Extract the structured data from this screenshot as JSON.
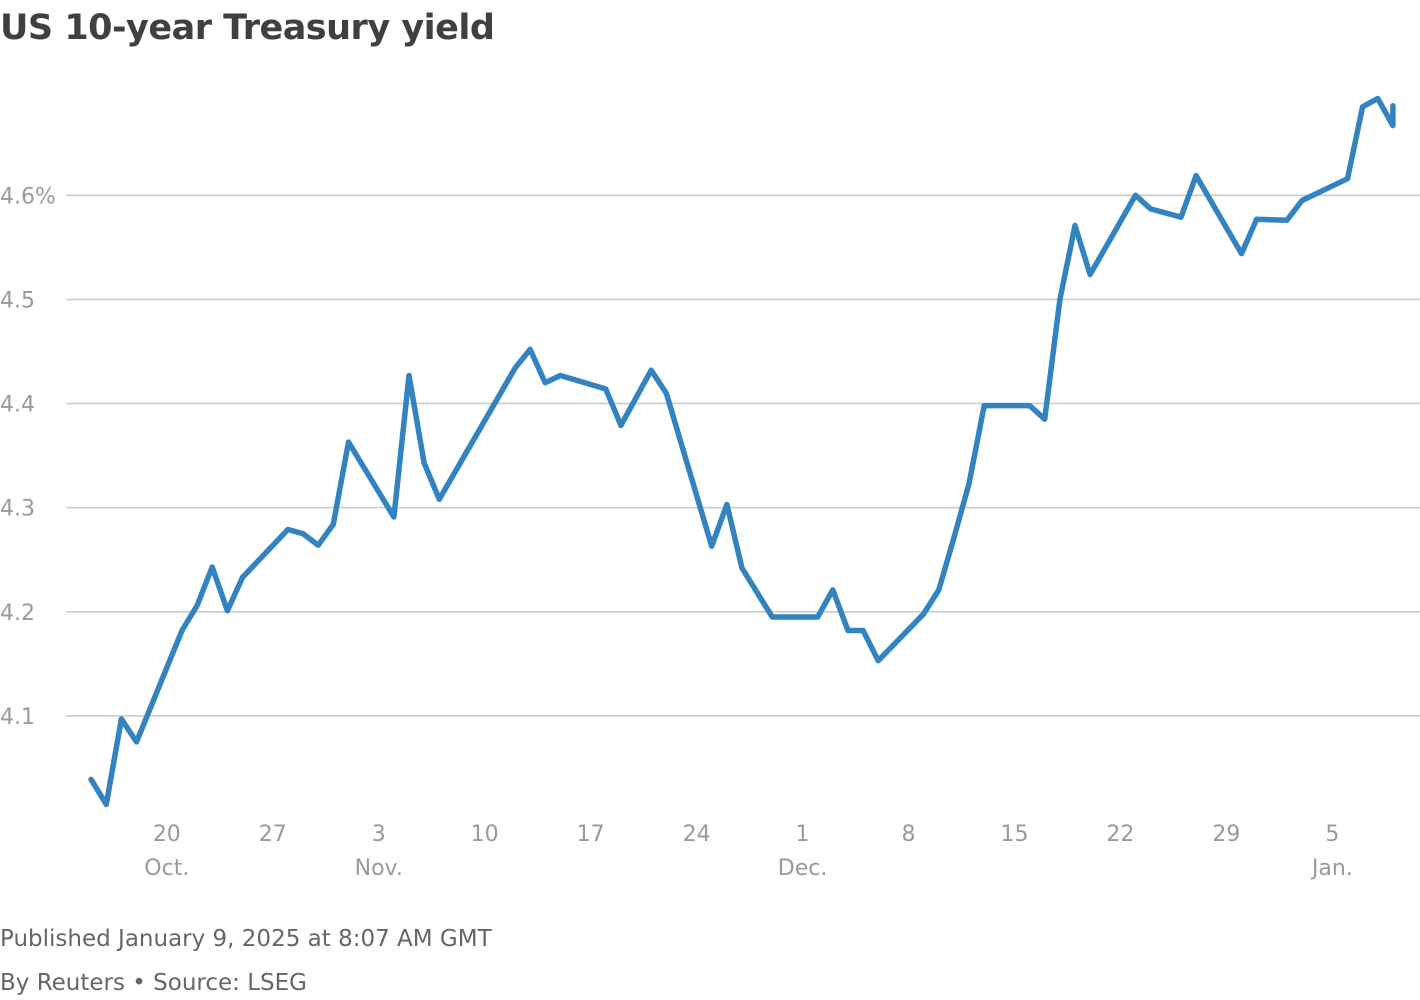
{
  "title": "US 10-year Treasury yield",
  "footer": {
    "published": "Published January 9, 2025 at 8:07 AM GMT",
    "byline": "By Reuters • Source: LSEG"
  },
  "colors": {
    "line": "#3383c0",
    "grid": "#c8c8c8",
    "tick_text": "#9a9a9a"
  },
  "chart_data": {
    "type": "line",
    "title": "US 10-year Treasury yield",
    "xlabel": "",
    "ylabel": "",
    "grid": true,
    "ylim": [
      4.0,
      4.73
    ],
    "xlim": [
      "2024-10-14",
      "2025-01-10"
    ],
    "y_ticks": [
      {
        "value": 4.1,
        "label": "4.1"
      },
      {
        "value": 4.2,
        "label": "4.2"
      },
      {
        "value": 4.3,
        "label": "4.3"
      },
      {
        "value": 4.4,
        "label": "4.4"
      },
      {
        "value": 4.5,
        "label": "4.5"
      },
      {
        "value": 4.6,
        "label": "4.6%"
      }
    ],
    "x_ticks": [
      {
        "date": "2024-10-20",
        "label": "20",
        "month": "Oct."
      },
      {
        "date": "2024-10-27",
        "label": "27",
        "month": ""
      },
      {
        "date": "2024-11-03",
        "label": "3",
        "month": "Nov."
      },
      {
        "date": "2024-11-10",
        "label": "10",
        "month": ""
      },
      {
        "date": "2024-11-17",
        "label": "17",
        "month": ""
      },
      {
        "date": "2024-11-24",
        "label": "24",
        "month": ""
      },
      {
        "date": "2024-12-01",
        "label": "1",
        "month": "Dec."
      },
      {
        "date": "2024-12-08",
        "label": "8",
        "month": ""
      },
      {
        "date": "2024-12-15",
        "label": "15",
        "month": ""
      },
      {
        "date": "2024-12-22",
        "label": "22",
        "month": ""
      },
      {
        "date": "2024-12-29",
        "label": "29",
        "month": ""
      },
      {
        "date": "2025-01-05",
        "label": "5",
        "month": "Jan."
      }
    ],
    "series": [
      {
        "points": [
          [
            "2024-10-15",
            4.039
          ],
          [
            "2024-10-16",
            4.015
          ],
          [
            "2024-10-17",
            4.097
          ],
          [
            "2024-10-18",
            4.075
          ],
          [
            "2024-10-21",
            4.182
          ],
          [
            "2024-10-22",
            4.206
          ],
          [
            "2024-10-23",
            4.243
          ],
          [
            "2024-10-24",
            4.201
          ],
          [
            "2024-10-25",
            4.233
          ],
          [
            "2024-10-28",
            4.279
          ],
          [
            "2024-10-29",
            4.275
          ],
          [
            "2024-10-30",
            4.264
          ],
          [
            "2024-10-31",
            4.284
          ],
          [
            "2024-11-01",
            4.363
          ],
          [
            "2024-11-04",
            4.291
          ],
          [
            "2024-11-05",
            4.427
          ],
          [
            "2024-11-06",
            4.343
          ],
          [
            "2024-11-07",
            4.308
          ],
          [
            "2024-11-12",
            4.434
          ],
          [
            "2024-11-13",
            4.452
          ],
          [
            "2024-11-14",
            4.42
          ],
          [
            "2024-11-15",
            4.427
          ],
          [
            "2024-11-18",
            4.414
          ],
          [
            "2024-11-19",
            4.379
          ],
          [
            "2024-11-21",
            4.432
          ],
          [
            "2024-11-22",
            4.41
          ],
          [
            "2024-11-25",
            4.263
          ],
          [
            "2024-11-26",
            4.303
          ],
          [
            "2024-11-27",
            4.242
          ],
          [
            "2024-11-29",
            4.195
          ],
          [
            "2024-12-02",
            4.195
          ],
          [
            "2024-12-03",
            4.221
          ],
          [
            "2024-12-04",
            4.182
          ],
          [
            "2024-12-05",
            4.182
          ],
          [
            "2024-12-06",
            4.153
          ],
          [
            "2024-12-09",
            4.198
          ],
          [
            "2024-12-10",
            4.221
          ],
          [
            "2024-12-11",
            4.271
          ],
          [
            "2024-12-12",
            4.323
          ],
          [
            "2024-12-13",
            4.398
          ],
          [
            "2024-12-16",
            4.398
          ],
          [
            "2024-12-17",
            4.385
          ],
          [
            "2024-12-18",
            4.5
          ],
          [
            "2024-12-19",
            4.571
          ],
          [
            "2024-12-20",
            4.524
          ],
          [
            "2024-12-23",
            4.6
          ],
          [
            "2024-12-24",
            4.587
          ],
          [
            "2024-12-26",
            4.579
          ],
          [
            "2024-12-27",
            4.619
          ],
          [
            "2024-12-30",
            4.544
          ],
          [
            "2024-12-31",
            4.577
          ],
          [
            "2025-01-02",
            4.576
          ],
          [
            "2025-01-03",
            4.595
          ],
          [
            "2025-01-06",
            4.616
          ],
          [
            "2025-01-07",
            4.685
          ],
          [
            "2025-01-08",
            4.693
          ],
          [
            "2025-01-09",
            4.667
          ],
          [
            "2025-01-09",
            4.686
          ]
        ]
      }
    ]
  }
}
